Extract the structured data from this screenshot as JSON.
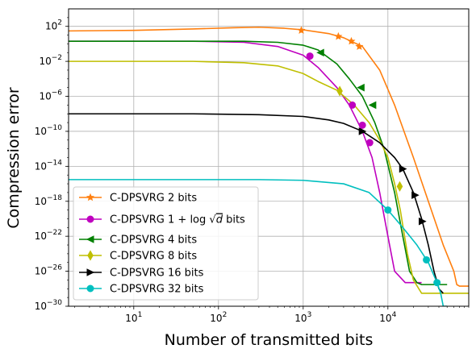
{
  "chart_data": {
    "type": "line",
    "title": "",
    "xlabel": "Number of transmitted bits",
    "ylabel": "Compression error",
    "x_scale": "log",
    "y_scale": "log",
    "xlim": [
      1.7,
      90000
    ],
    "ylim": [
      1e-30,
      10000
    ],
    "grid": true,
    "legend_position": "lower-left",
    "x_ticks": [
      {
        "value": 10,
        "base": "10",
        "exp": "1"
      },
      {
        "value": 100,
        "base": "10",
        "exp": "2"
      },
      {
        "value": 1000,
        "base": "10",
        "exp": "3"
      },
      {
        "value": 10000,
        "base": "10",
        "exp": "4"
      }
    ],
    "y_ticks": [
      {
        "value": 100,
        "base": "10",
        "exp": "2"
      },
      {
        "value": 0.01,
        "base": "10",
        "exp": "−2"
      },
      {
        "value": 1e-06,
        "base": "10",
        "exp": "−6"
      },
      {
        "value": 1e-10,
        "base": "10",
        "exp": "−10"
      },
      {
        "value": 1e-14,
        "base": "10",
        "exp": "−14"
      },
      {
        "value": 1e-18,
        "base": "10",
        "exp": "−18"
      },
      {
        "value": 1e-22,
        "base": "10",
        "exp": "−22"
      },
      {
        "value": 1e-26,
        "base": "10",
        "exp": "−26"
      },
      {
        "value": 1e-30,
        "base": "10",
        "exp": "−30"
      }
    ],
    "series": [
      {
        "name": "C-DPSVRG 2 bits",
        "color": "#ff7f0e",
        "marker": "star",
        "x": [
          1.7,
          10,
          50,
          150,
          300,
          600,
          1000,
          2000,
          3000,
          5000,
          8000,
          12000,
          20000,
          30000,
          45000,
          60000,
          65000,
          70000,
          90000
        ],
        "y": [
          30,
          35,
          50,
          70,
          80,
          60,
          40,
          15,
          5,
          0.5,
          0.001,
          1e-07,
          1e-13,
          1e-18,
          1e-23,
          1e-26,
          3e-28,
          2e-28,
          2e-28
        ],
        "markers_x": [
          950,
          2600,
          3700,
          4600
        ],
        "markers_y": [
          35,
          7,
          2,
          0.5
        ]
      },
      {
        "name": "C-DPSVRG $1+\\log\\sqrt{d}$ bits",
        "color": "#bf00bf",
        "marker": "circle",
        "x": [
          1.7,
          50,
          200,
          500,
          1000,
          1500,
          2500,
          3500,
          5000,
          6500,
          8000,
          10000,
          12000,
          16000,
          25000
        ],
        "y": [
          2,
          2,
          1.5,
          0.5,
          0.05,
          0.002,
          1e-05,
          1e-07,
          1e-10,
          1e-13,
          1e-17,
          1e-22,
          1e-26,
          5e-28,
          5e-28
        ],
        "markers_x": [
          1200,
          3800,
          5000,
          6100
        ],
        "markers_y": [
          0.04,
          1e-07,
          5e-10,
          5e-12
        ]
      },
      {
        "name": "C-DPSVRG 4 bits",
        "color": "#008000",
        "marker": "triangle-left",
        "x": [
          1.7,
          50,
          200,
          500,
          1000,
          1500,
          2500,
          3500,
          5000,
          7000,
          9000,
          12000,
          15000,
          18000,
          22000,
          25000,
          40000,
          50000
        ],
        "y": [
          2,
          2,
          2,
          1.5,
          0.7,
          0.2,
          0.005,
          0.0001,
          1e-06,
          1e-09,
          1e-12,
          1e-17,
          1e-22,
          1e-26,
          5e-28,
          3e-28,
          3e-28,
          3e-28
        ],
        "markers_x": [
          1600,
          4800,
          6600
        ],
        "markers_y": [
          0.1,
          1e-05,
          1e-07
        ]
      },
      {
        "name": "C-DPSVRG 8 bits",
        "color": "#bfbf00",
        "marker": "diamond",
        "x": [
          1.7,
          50,
          200,
          500,
          1000,
          1500,
          2500,
          4000,
          6000,
          8000,
          10000,
          12000,
          14000,
          17000,
          20000,
          25000,
          90000
        ],
        "y": [
          0.01,
          0.01,
          0.007,
          0.003,
          0.0004,
          5e-05,
          5e-06,
          1e-07,
          1e-09,
          1e-11,
          1e-13,
          1e-16,
          1e-19,
          1e-24,
          1e-27,
          3e-29,
          3e-29
        ],
        "markers_x": [
          2700,
          13800
        ],
        "markers_y": [
          4e-06,
          5e-17
        ]
      },
      {
        "name": "C-DPSVRG 16 bits",
        "color": "#000000",
        "marker": "triangle-right",
        "x": [
          1.7,
          50,
          300,
          1000,
          2000,
          3000,
          5000,
          8000,
          12000,
          15000,
          20000,
          25000,
          30000,
          35000,
          40000,
          45000
        ],
        "y": [
          1e-08,
          1e-08,
          8e-09,
          5e-09,
          2e-09,
          8e-10,
          1e-10,
          5e-12,
          1e-13,
          5e-15,
          1e-17,
          1e-20,
          1e-23,
          1e-26,
          1e-28,
          3e-29
        ],
        "markers_x": [
          5000,
          15000,
          21000,
          25500
        ],
        "markers_y": [
          1e-10,
          5e-15,
          5e-18,
          5e-21
        ]
      },
      {
        "name": "C-DPSVRG 32 bits",
        "color": "#00bfbf",
        "marker": "circle",
        "x": [
          1.7,
          50,
          300,
          1000,
          3000,
          6000,
          10000,
          15000,
          22000,
          30000,
          38000,
          42000,
          45000,
          50000
        ],
        "y": [
          3e-16,
          3e-16,
          3e-16,
          2.5e-16,
          1e-16,
          1e-17,
          1e-19,
          1e-21,
          1e-23,
          1e-25,
          5e-28,
          3e-29,
          1e-30,
          1e-30
        ],
        "markers_x": [
          10000,
          28500,
          38000
        ],
        "markers_y": [
          1e-19,
          2e-25,
          5e-28
        ]
      }
    ]
  }
}
